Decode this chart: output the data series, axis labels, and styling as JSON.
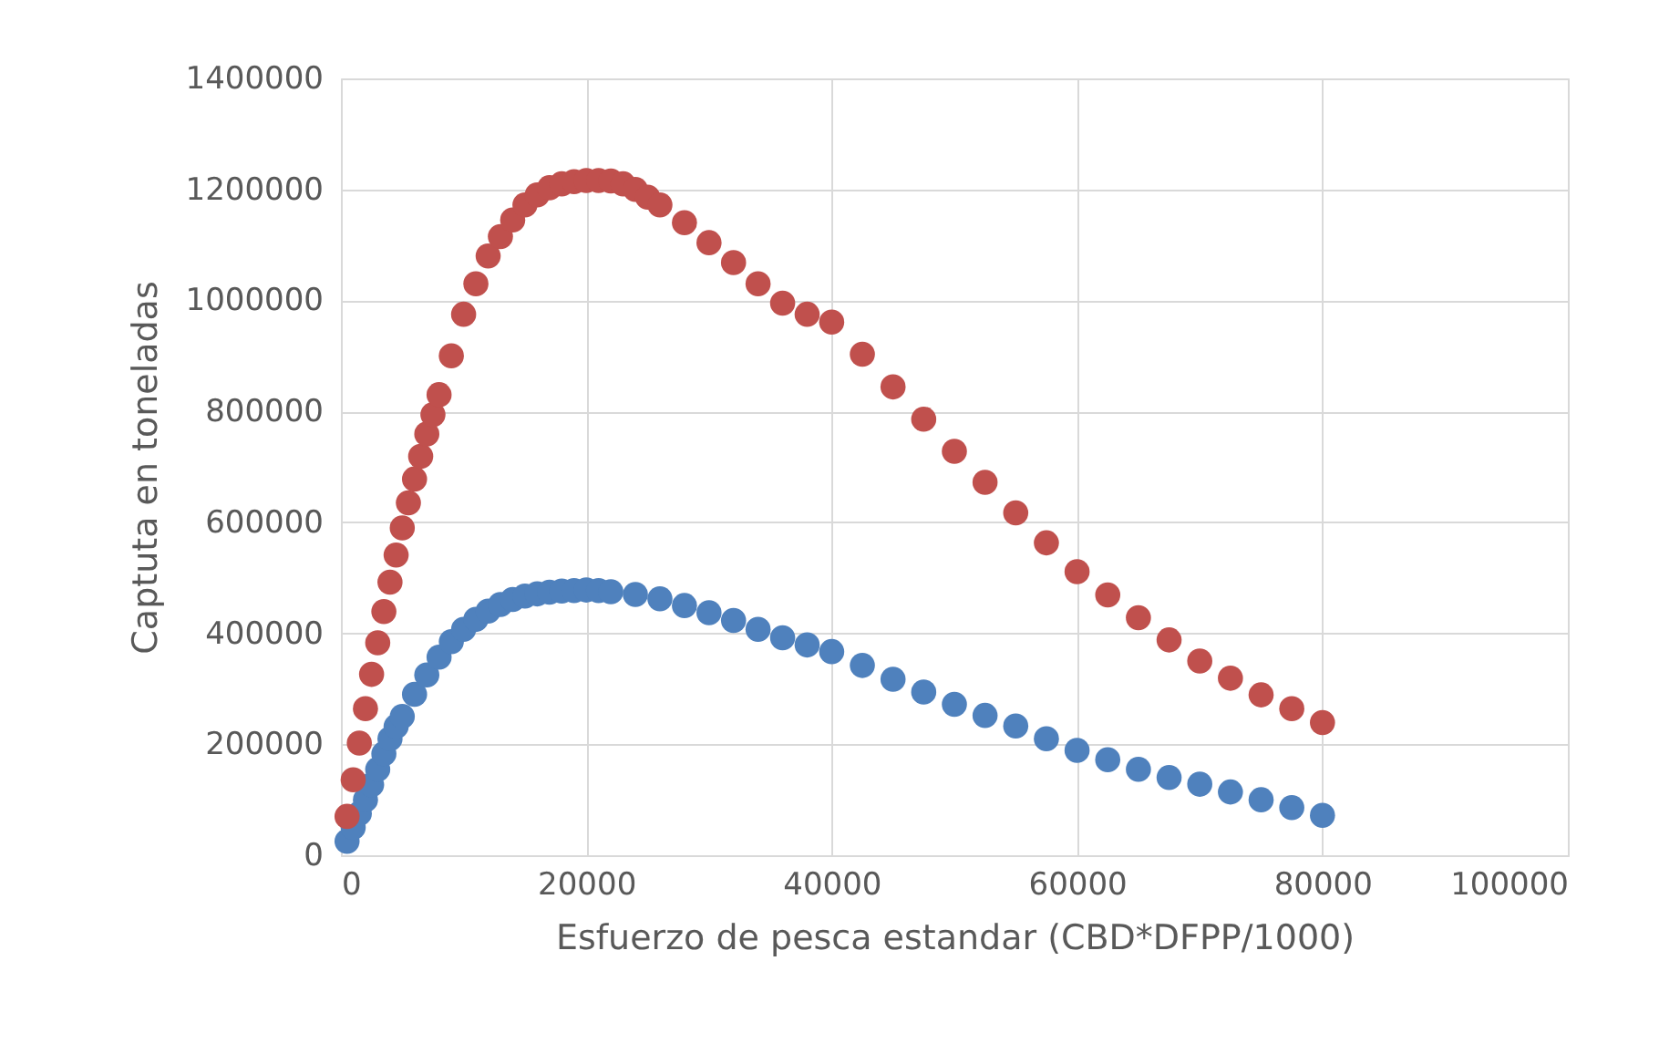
{
  "chart_data": {
    "type": "scatter",
    "xlabel": "Esfuerzo de pesca estandar (CBD*DFPP/1000)",
    "ylabel": "Captuta en toneladas",
    "xlim": [
      0,
      100000
    ],
    "xticks": [
      0,
      20000,
      40000,
      60000,
      80000,
      100000
    ],
    "ylim": [
      0,
      1400000
    ],
    "yticks": [
      0,
      200000,
      400000,
      600000,
      800000,
      1000000,
      1200000,
      1400000
    ],
    "grid": true,
    "marker": "circle",
    "legend": false,
    "series": [
      {
        "color": "#4f81bd",
        "x": [
          500,
          1000,
          1500,
          2000,
          2500,
          3000,
          3500,
          4000,
          4500,
          5000,
          6000,
          7000,
          8000,
          9000,
          10000,
          11000,
          12000,
          13000,
          14000,
          15000,
          16000,
          17000,
          18000,
          19000,
          20000,
          21000,
          22000,
          24000,
          26000,
          28000,
          30000,
          32000,
          34000,
          36000,
          38000,
          40000,
          42500,
          45000,
          47500,
          50000,
          52500,
          55000,
          57500,
          60000,
          62500,
          65000,
          67500,
          70000,
          72500,
          75000,
          77500,
          80000
        ],
        "values": [
          25000,
          50000,
          75000,
          100000,
          127000,
          155000,
          183000,
          210000,
          232000,
          250000,
          290000,
          325000,
          357000,
          385000,
          407000,
          425000,
          440000,
          452000,
          461000,
          467000,
          471000,
          474000,
          476000,
          477000,
          478000,
          477000,
          475000,
          470000,
          462000,
          450000,
          437000,
          423000,
          407000,
          392000,
          379000,
          367000,
          342000,
          317000,
          294000,
          272000,
          252000,
          233000,
          210000,
          189000,
          172000,
          155000,
          140000,
          128000,
          114000,
          100000,
          86000,
          72000
        ]
      },
      {
        "color": "#c0504d",
        "x": [
          500,
          1000,
          1500,
          2000,
          2500,
          3000,
          3500,
          4000,
          4500,
          5000,
          5500,
          6000,
          6500,
          7000,
          7500,
          8000,
          9000,
          10000,
          11000,
          12000,
          13000,
          14000,
          15000,
          16000,
          17000,
          18000,
          19000,
          20000,
          21000,
          22000,
          23000,
          24000,
          25000,
          26000,
          28000,
          30000,
          32000,
          34000,
          36000,
          38000,
          40000,
          42500,
          45000,
          47500,
          50000,
          52500,
          55000,
          57500,
          60000,
          62500,
          65000,
          67500,
          70000,
          72500,
          75000,
          77500,
          80000
        ],
        "values": [
          70000,
          136000,
          202000,
          264000,
          326000,
          383000,
          439000,
          492000,
          541000,
          590000,
          635000,
          678000,
          719000,
          759000,
          794000,
          830000,
          900000,
          975000,
          1030000,
          1080000,
          1115000,
          1145000,
          1172000,
          1190000,
          1203000,
          1210000,
          1214000,
          1216000,
          1216000,
          1215000,
          1210000,
          1200000,
          1186000,
          1172000,
          1140000,
          1104000,
          1068000,
          1030000,
          995000,
          975000,
          961000,
          903000,
          844000,
          786000,
          728000,
          672000,
          617000,
          563000,
          511000,
          469000,
          428000,
          388000,
          350000,
          319000,
          289000,
          264000,
          239000
        ]
      }
    ]
  }
}
